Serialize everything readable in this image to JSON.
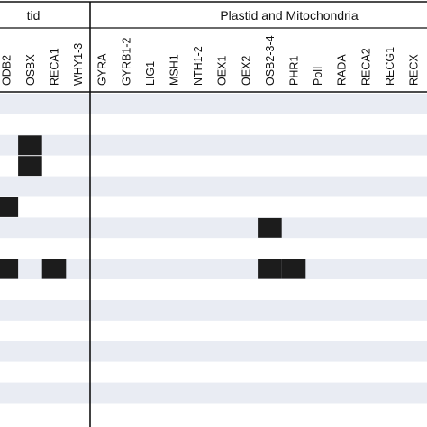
{
  "chart_data": {
    "type": "heatmap",
    "title": "",
    "groups": [
      {
        "label": "tid",
        "columns": [
          "ODB2",
          "OSBX",
          "RECA1",
          "WHY1-3"
        ]
      },
      {
        "label": "Plastid and Mitochondria",
        "columns": [
          "GYRA",
          "GYRB1-2",
          "LIG1",
          "MSH1",
          "NTH1-2",
          "OEX1",
          "OEX2",
          "OSB2-3-4",
          "PHR1",
          "PolI",
          "RADA",
          "RECA2",
          "RECG1",
          "RECX"
        ]
      }
    ],
    "columns": [
      "ODB2",
      "OSBX",
      "RECA1",
      "WHY1-3",
      "GYRA",
      "GYRB1-2",
      "LIG1",
      "MSH1",
      "NTH1-2",
      "OEX1",
      "OEX2",
      "OSB2-3-4",
      "PHR1",
      "PolI",
      "RADA",
      "RECA2",
      "RECG1",
      "RECX"
    ],
    "row_count": 16,
    "values": [
      [
        0,
        0,
        0,
        0,
        0,
        0,
        0,
        0,
        0,
        0,
        0,
        0,
        0,
        0,
        0,
        0,
        0,
        0
      ],
      [
        0,
        0,
        0,
        0,
        0,
        0,
        0,
        0,
        0,
        0,
        0,
        0,
        0,
        0,
        0,
        0,
        0,
        0
      ],
      [
        0,
        1,
        0,
        0,
        0,
        0,
        0,
        0,
        0,
        0,
        0,
        0,
        0,
        0,
        0,
        0,
        0,
        0
      ],
      [
        0,
        1,
        0,
        0,
        0,
        0,
        0,
        0,
        0,
        0,
        0,
        0,
        0,
        0,
        0,
        0,
        0,
        0
      ],
      [
        0,
        0,
        0,
        0,
        0,
        0,
        0,
        0,
        0,
        0,
        0,
        0,
        0,
        0,
        0,
        0,
        0,
        0
      ],
      [
        1,
        0,
        0,
        0,
        0,
        0,
        0,
        0,
        0,
        0,
        0,
        0,
        0,
        0,
        0,
        0,
        0,
        0
      ],
      [
        0,
        0,
        0,
        0,
        0,
        0,
        0,
        0,
        0,
        0,
        0,
        1,
        0,
        0,
        0,
        0,
        0,
        0
      ],
      [
        0,
        0,
        0,
        0,
        0,
        0,
        0,
        0,
        0,
        0,
        0,
        0,
        0,
        0,
        0,
        0,
        0,
        0
      ],
      [
        1,
        0,
        1,
        0,
        0,
        0,
        0,
        0,
        0,
        0,
        0,
        1,
        1,
        0,
        0,
        0,
        0,
        0
      ],
      [
        0,
        0,
        0,
        0,
        0,
        0,
        0,
        0,
        0,
        0,
        0,
        0,
        0,
        0,
        0,
        0,
        0,
        0
      ],
      [
        0,
        0,
        0,
        0,
        0,
        0,
        0,
        0,
        0,
        0,
        0,
        0,
        0,
        0,
        0,
        0,
        0,
        0
      ],
      [
        0,
        0,
        0,
        0,
        0,
        0,
        0,
        0,
        0,
        0,
        0,
        0,
        0,
        0,
        0,
        0,
        0,
        0
      ],
      [
        0,
        0,
        0,
        0,
        0,
        0,
        0,
        0,
        0,
        0,
        0,
        0,
        0,
        0,
        0,
        0,
        0,
        0
      ],
      [
        0,
        0,
        0,
        0,
        0,
        0,
        0,
        0,
        0,
        0,
        0,
        0,
        0,
        0,
        0,
        0,
        0,
        0
      ],
      [
        0,
        0,
        0,
        0,
        0,
        0,
        0,
        0,
        0,
        0,
        0,
        0,
        0,
        0,
        0,
        0,
        0,
        0
      ],
      [
        0,
        0,
        0,
        0,
        0,
        0,
        0,
        0,
        0,
        0,
        0,
        0,
        0,
        0,
        0,
        0,
        0,
        0
      ]
    ],
    "colors": {
      "filled": "#1c1c1c",
      "stripe": "#e9ecf3",
      "background": "#ffffff",
      "border": "#111111"
    },
    "grid": false,
    "legend": "none"
  }
}
